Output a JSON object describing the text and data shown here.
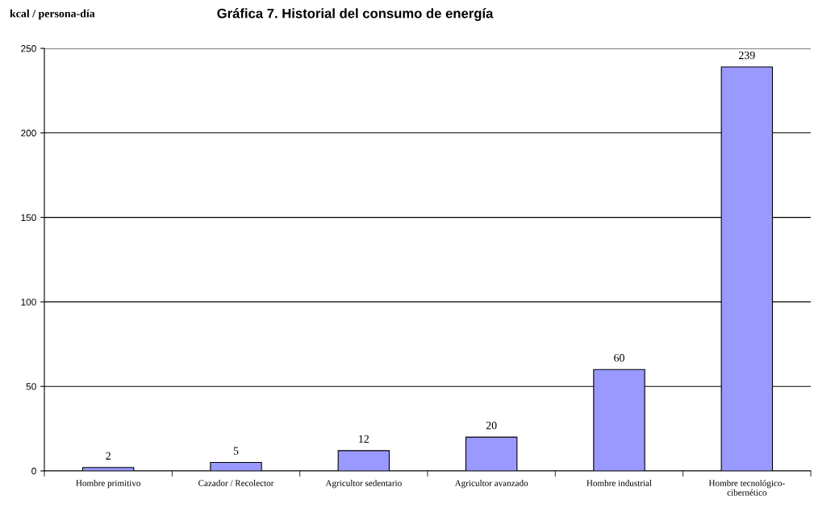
{
  "chart_data": {
    "type": "bar",
    "title": "Gráfica 7. Historial del consumo de energía",
    "ylabel": "kcal / persona-día",
    "categories": [
      "Hombre primitivo",
      "Cazador / Recolector",
      "Agricultor sedentario",
      "Agricultor avanzado",
      "Hombre industrial",
      "Hombre tecnológico-\ncibernético"
    ],
    "values": [
      2,
      5,
      12,
      20,
      60,
      239
    ],
    "color": "#9999ff",
    "ylim": [
      0,
      250
    ],
    "yticks": [
      0,
      50,
      100,
      150,
      200,
      250
    ],
    "grid": "y",
    "data_labels": true
  }
}
